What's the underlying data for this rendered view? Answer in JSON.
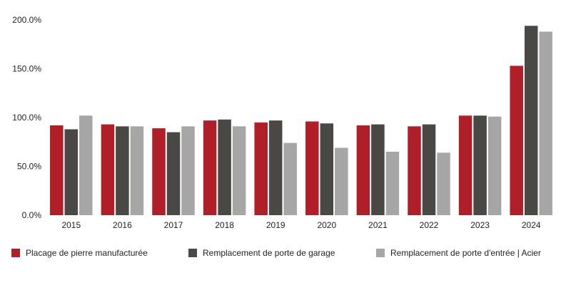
{
  "chart_data": {
    "type": "bar",
    "categories": [
      "2015",
      "2016",
      "2017",
      "2018",
      "2019",
      "2020",
      "2021",
      "2022",
      "2023",
      "2024"
    ],
    "series": [
      {
        "name": "Placage de pierre manufacturée",
        "color": "#b01f28",
        "values": [
          92.0,
          93.0,
          89.0,
          97.0,
          95.0,
          96.0,
          92.0,
          91.0,
          102.0,
          153.0
        ]
      },
      {
        "name": "Remplacement de porte de garage",
        "color": "#4a4845",
        "values": [
          88.0,
          91.0,
          85.0,
          98.0,
          97.0,
          94.0,
          93.0,
          93.0,
          102.0,
          194.0
        ]
      },
      {
        "name": "Remplacement de porte d'entrée | Acier",
        "color": "#a6a6a6",
        "values": [
          102.0,
          91.0,
          91.0,
          91.0,
          74.0,
          69.0,
          65.0,
          64.0,
          101.0,
          188.0
        ]
      }
    ],
    "yticks": [
      "0.0%",
      "50.0%",
      "100.0%",
      "150.0%",
      "200.0%"
    ],
    "ytick_values": [
      0,
      50,
      100,
      150,
      200
    ],
    "ylim": [
      0,
      200
    ],
    "grid": false,
    "legend_position": "bottom",
    "title": "",
    "xlabel": "",
    "ylabel": ""
  }
}
